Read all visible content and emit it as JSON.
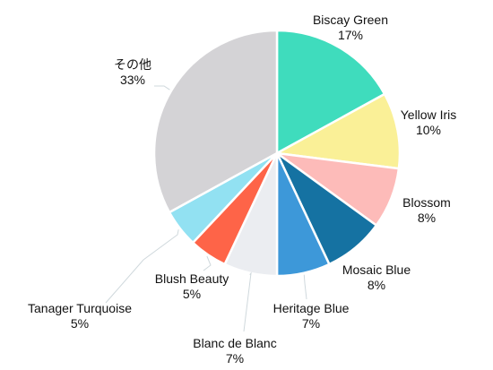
{
  "chart_data": {
    "type": "pie",
    "title": "",
    "start_angle_deg": 0,
    "direction": "clockwise",
    "slices": [
      {
        "label": "Biscay Green",
        "value": 17,
        "pct_label": "17%",
        "color": "#3fdcbd"
      },
      {
        "label": "Yellow Iris",
        "value": 10,
        "pct_label": "10%",
        "color": "#faf097"
      },
      {
        "label": "Blossom",
        "value": 8,
        "pct_label": "8%",
        "color": "#fdbbb9"
      },
      {
        "label": "Mosaic Blue",
        "value": 8,
        "pct_label": "8%",
        "color": "#1572a2"
      },
      {
        "label": "Heritage Blue",
        "value": 7,
        "pct_label": "7%",
        "color": "#3d98d9"
      },
      {
        "label": "Blanc de Blanc",
        "value": 7,
        "pct_label": "7%",
        "color": "#ebedf1"
      },
      {
        "label": "Blush Beauty",
        "value": 5,
        "pct_label": "5%",
        "color": "#fe6448"
      },
      {
        "label": "Tanager Turquoise",
        "value": 5,
        "pct_label": "5%",
        "color": "#92e1f2"
      },
      {
        "label": "その他",
        "value": 33,
        "pct_label": "33%",
        "color": "#d4d3d6"
      }
    ]
  }
}
